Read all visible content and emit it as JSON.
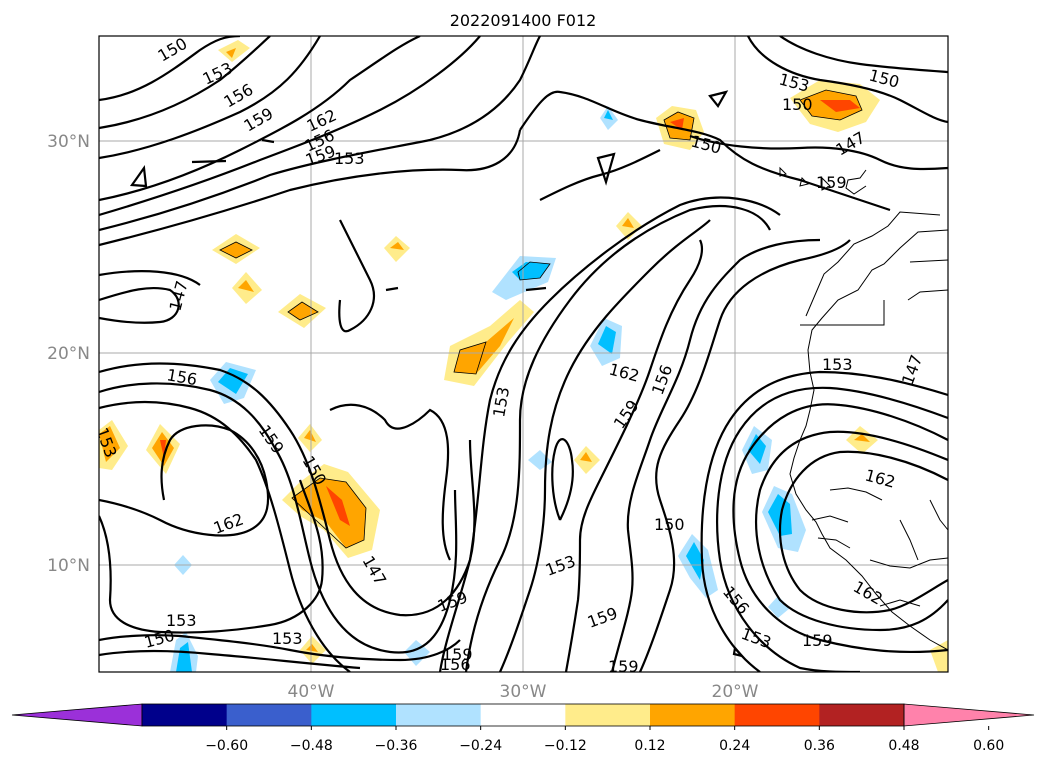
{
  "title": "2022091400 F012",
  "lat_labels": [
    "30°N",
    "20°N",
    "10°N"
  ],
  "lon_labels": [
    "40°W",
    "30°W",
    "20°W"
  ],
  "colorbar": {
    "colors": [
      "#9b30d9",
      "#00008b",
      "#3a5fcd",
      "#00bfff",
      "#b0e2ff",
      "#ffffff",
      "#ffec8b",
      "#ffa500",
      "#ff4500",
      "#b22222",
      "#ff82ab"
    ],
    "tick_labels": [
      "−0.60",
      "−0.48",
      "−0.36",
      "−0.24",
      "−0.12",
      "0.12",
      "0.24",
      "0.36",
      "0.48",
      "0.60"
    ]
  },
  "contour_labels": [
    "150",
    "153",
    "156",
    "159",
    "162",
    "147",
    "150",
    "153",
    "156",
    "159",
    "147",
    "162",
    "153",
    "150",
    "153",
    "156",
    "147",
    "159",
    "150",
    "162",
    "153",
    "156",
    "159",
    "162",
    "153",
    "150",
    "159",
    "153",
    "159",
    "153",
    "150",
    "153",
    "156",
    "159",
    "162",
    "150",
    "159",
    "159",
    "156",
    "153",
    "147",
    "159",
    "150",
    "153",
    "156",
    "147",
    "162",
    "150"
  ]
}
